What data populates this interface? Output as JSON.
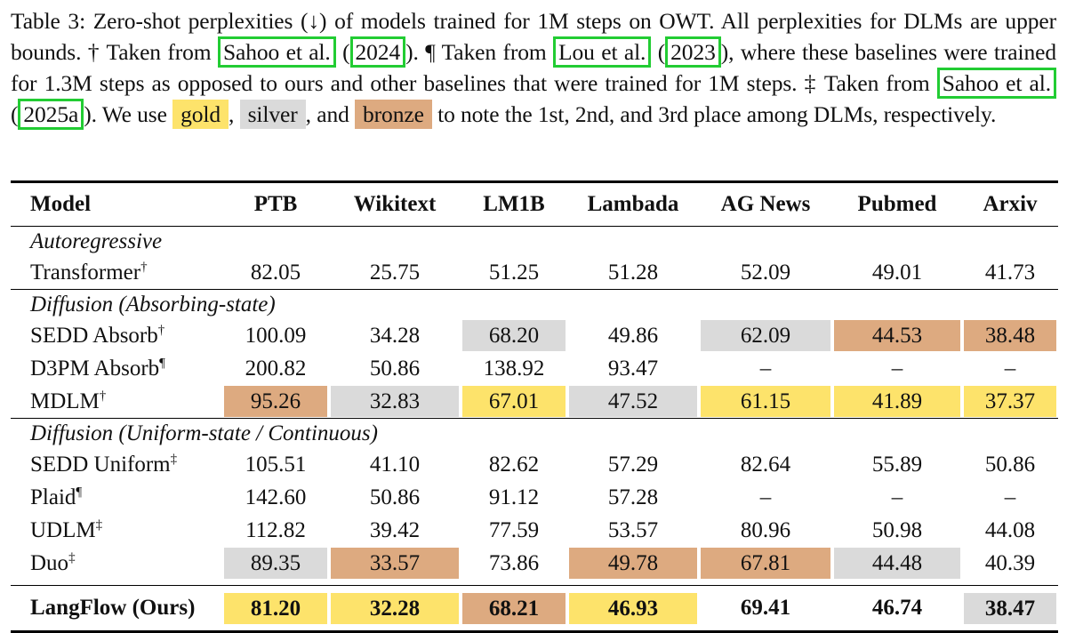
{
  "caption": {
    "part1": "Table 3: Zero-shot perplexities (↓) of models trained for 1M steps on OWT. All perplexities for DLMs are upper bounds. † Taken from ",
    "cite1_name": "Sahoo et al.",
    "cite1_year": "2024",
    "part2": "). ¶ Taken from ",
    "cite2_name": "Lou et al.",
    "cite2_year": "2023",
    "part3": "), where these baselines were trained for 1.3M steps as opposed to ours and other baselines that were trained for 1M steps. ‡ Taken from ",
    "cite3_name": "Sahoo et al.",
    "cite3_year": "2025a",
    "part4": "). We use ",
    "gold": "gold",
    "silver": "silver",
    "bronze": "bronze",
    "part5": "to note the 1st, 2nd, and 3rd place among DLMs, respectively."
  },
  "colors": {
    "gold": "#fde36b",
    "silver": "#dadada",
    "bronze": "#ddaa80",
    "citation_box": "#22cc33"
  },
  "table": {
    "headers": [
      "Model",
      "PTB",
      "Wikitext",
      "LM1B",
      "Lambada",
      "AG News",
      "Pubmed",
      "Arxiv"
    ],
    "sections": [
      {
        "title": "Autoregressive",
        "rows": [
          {
            "model": "Transformer",
            "mark": "†",
            "values": [
              "82.05",
              "25.75",
              "51.25",
              "51.28",
              "52.09",
              "49.01",
              "41.73"
            ],
            "highlights": [
              "",
              "",
              "",
              "",
              "",
              "",
              ""
            ]
          }
        ]
      },
      {
        "title": "Diffusion (Absorbing-state)",
        "rows": [
          {
            "model": "SEDD Absorb",
            "mark": "†",
            "values": [
              "100.09",
              "34.28",
              "68.20",
              "49.86",
              "62.09",
              "44.53",
              "38.48"
            ],
            "highlights": [
              "",
              "",
              "silver",
              "",
              "silver",
              "bronze",
              "bronze"
            ]
          },
          {
            "model": "D3PM Absorb",
            "mark": "¶",
            "values": [
              "200.82",
              "50.86",
              "138.92",
              "93.47",
              "–",
              "–",
              "–"
            ],
            "highlights": [
              "",
              "",
              "",
              "",
              "",
              "",
              ""
            ]
          },
          {
            "model": "MDLM",
            "mark": "†",
            "values": [
              "95.26",
              "32.83",
              "67.01",
              "47.52",
              "61.15",
              "41.89",
              "37.37"
            ],
            "highlights": [
              "bronze",
              "silver",
              "gold",
              "silver",
              "gold",
              "gold",
              "gold"
            ]
          }
        ]
      },
      {
        "title": "Diffusion (Uniform-state / Continuous)",
        "rows": [
          {
            "model": "SEDD Uniform",
            "mark": "‡",
            "values": [
              "105.51",
              "41.10",
              "82.62",
              "57.29",
              "82.64",
              "55.89",
              "50.86"
            ],
            "highlights": [
              "",
              "",
              "",
              "",
              "",
              "",
              ""
            ]
          },
          {
            "model": "Plaid",
            "mark": "¶",
            "values": [
              "142.60",
              "50.86",
              "91.12",
              "57.28",
              "–",
              "–",
              "–"
            ],
            "highlights": [
              "",
              "",
              "",
              "",
              "",
              "",
              ""
            ]
          },
          {
            "model": "UDLM",
            "mark": "‡",
            "values": [
              "112.82",
              "39.42",
              "77.59",
              "53.57",
              "80.96",
              "50.98",
              "44.08"
            ],
            "highlights": [
              "",
              "",
              "",
              "",
              "",
              "",
              ""
            ]
          },
          {
            "model": "Duo",
            "mark": "‡",
            "values": [
              "89.35",
              "33.57",
              "73.86",
              "49.78",
              "67.81",
              "44.48",
              "40.39"
            ],
            "highlights": [
              "silver",
              "bronze",
              "",
              "bronze",
              "bronze",
              "silver",
              ""
            ]
          }
        ]
      }
    ],
    "final_row": {
      "model": "LangFlow (Ours)",
      "values": [
        "81.20",
        "32.28",
        "68.21",
        "46.93",
        "69.41",
        "46.74",
        "38.47"
      ],
      "highlights": [
        "gold",
        "gold",
        "bronze",
        "gold",
        "",
        "",
        "silver"
      ]
    }
  }
}
